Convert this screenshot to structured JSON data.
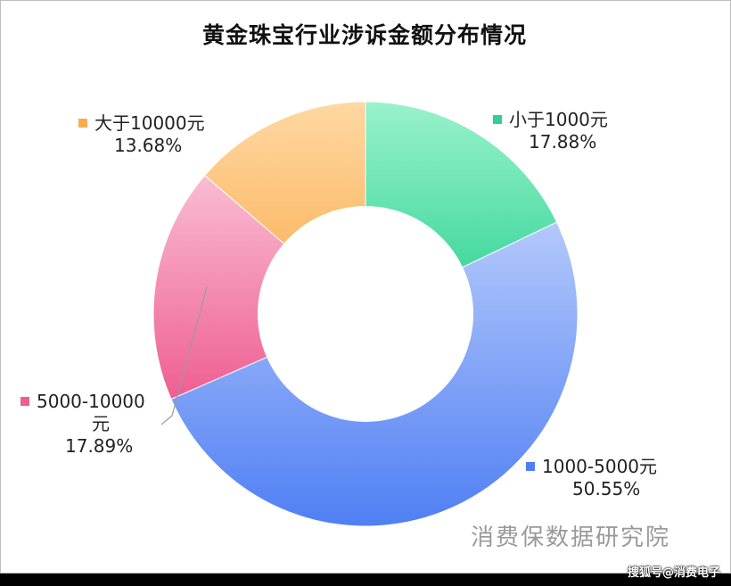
{
  "chart_data": {
    "type": "pie",
    "variant": "donut",
    "title": "黄金珠宝行业涉诉金额分布情况",
    "slices": [
      {
        "label": "小于1000元",
        "value": 17.88,
        "pct_label": "17.88%",
        "color": "#2ed193",
        "color_light": "#9af2cc"
      },
      {
        "label": "1000-5000元",
        "value": 50.55,
        "pct_label": "50.55%",
        "color": "#4f7ff4",
        "color_light": "#b4c9fb"
      },
      {
        "label": "5000-10000元",
        "label_lines": [
          "5000-10000",
          "元"
        ],
        "value": 17.89,
        "pct_label": "17.89%",
        "color": "#ef5e92",
        "color_light": "#f9bdd3"
      },
      {
        "label": "大于10000元",
        "value": 13.68,
        "pct_label": "13.68%",
        "color": "#f9ad4e",
        "color_light": "#ffd8a3"
      }
    ],
    "start": "12 o'clock",
    "direction": "clockwise",
    "legend": "labels beside each slice"
  },
  "watermark": "消费保数据研究院",
  "source_credit": "搜狐号@消费电子"
}
